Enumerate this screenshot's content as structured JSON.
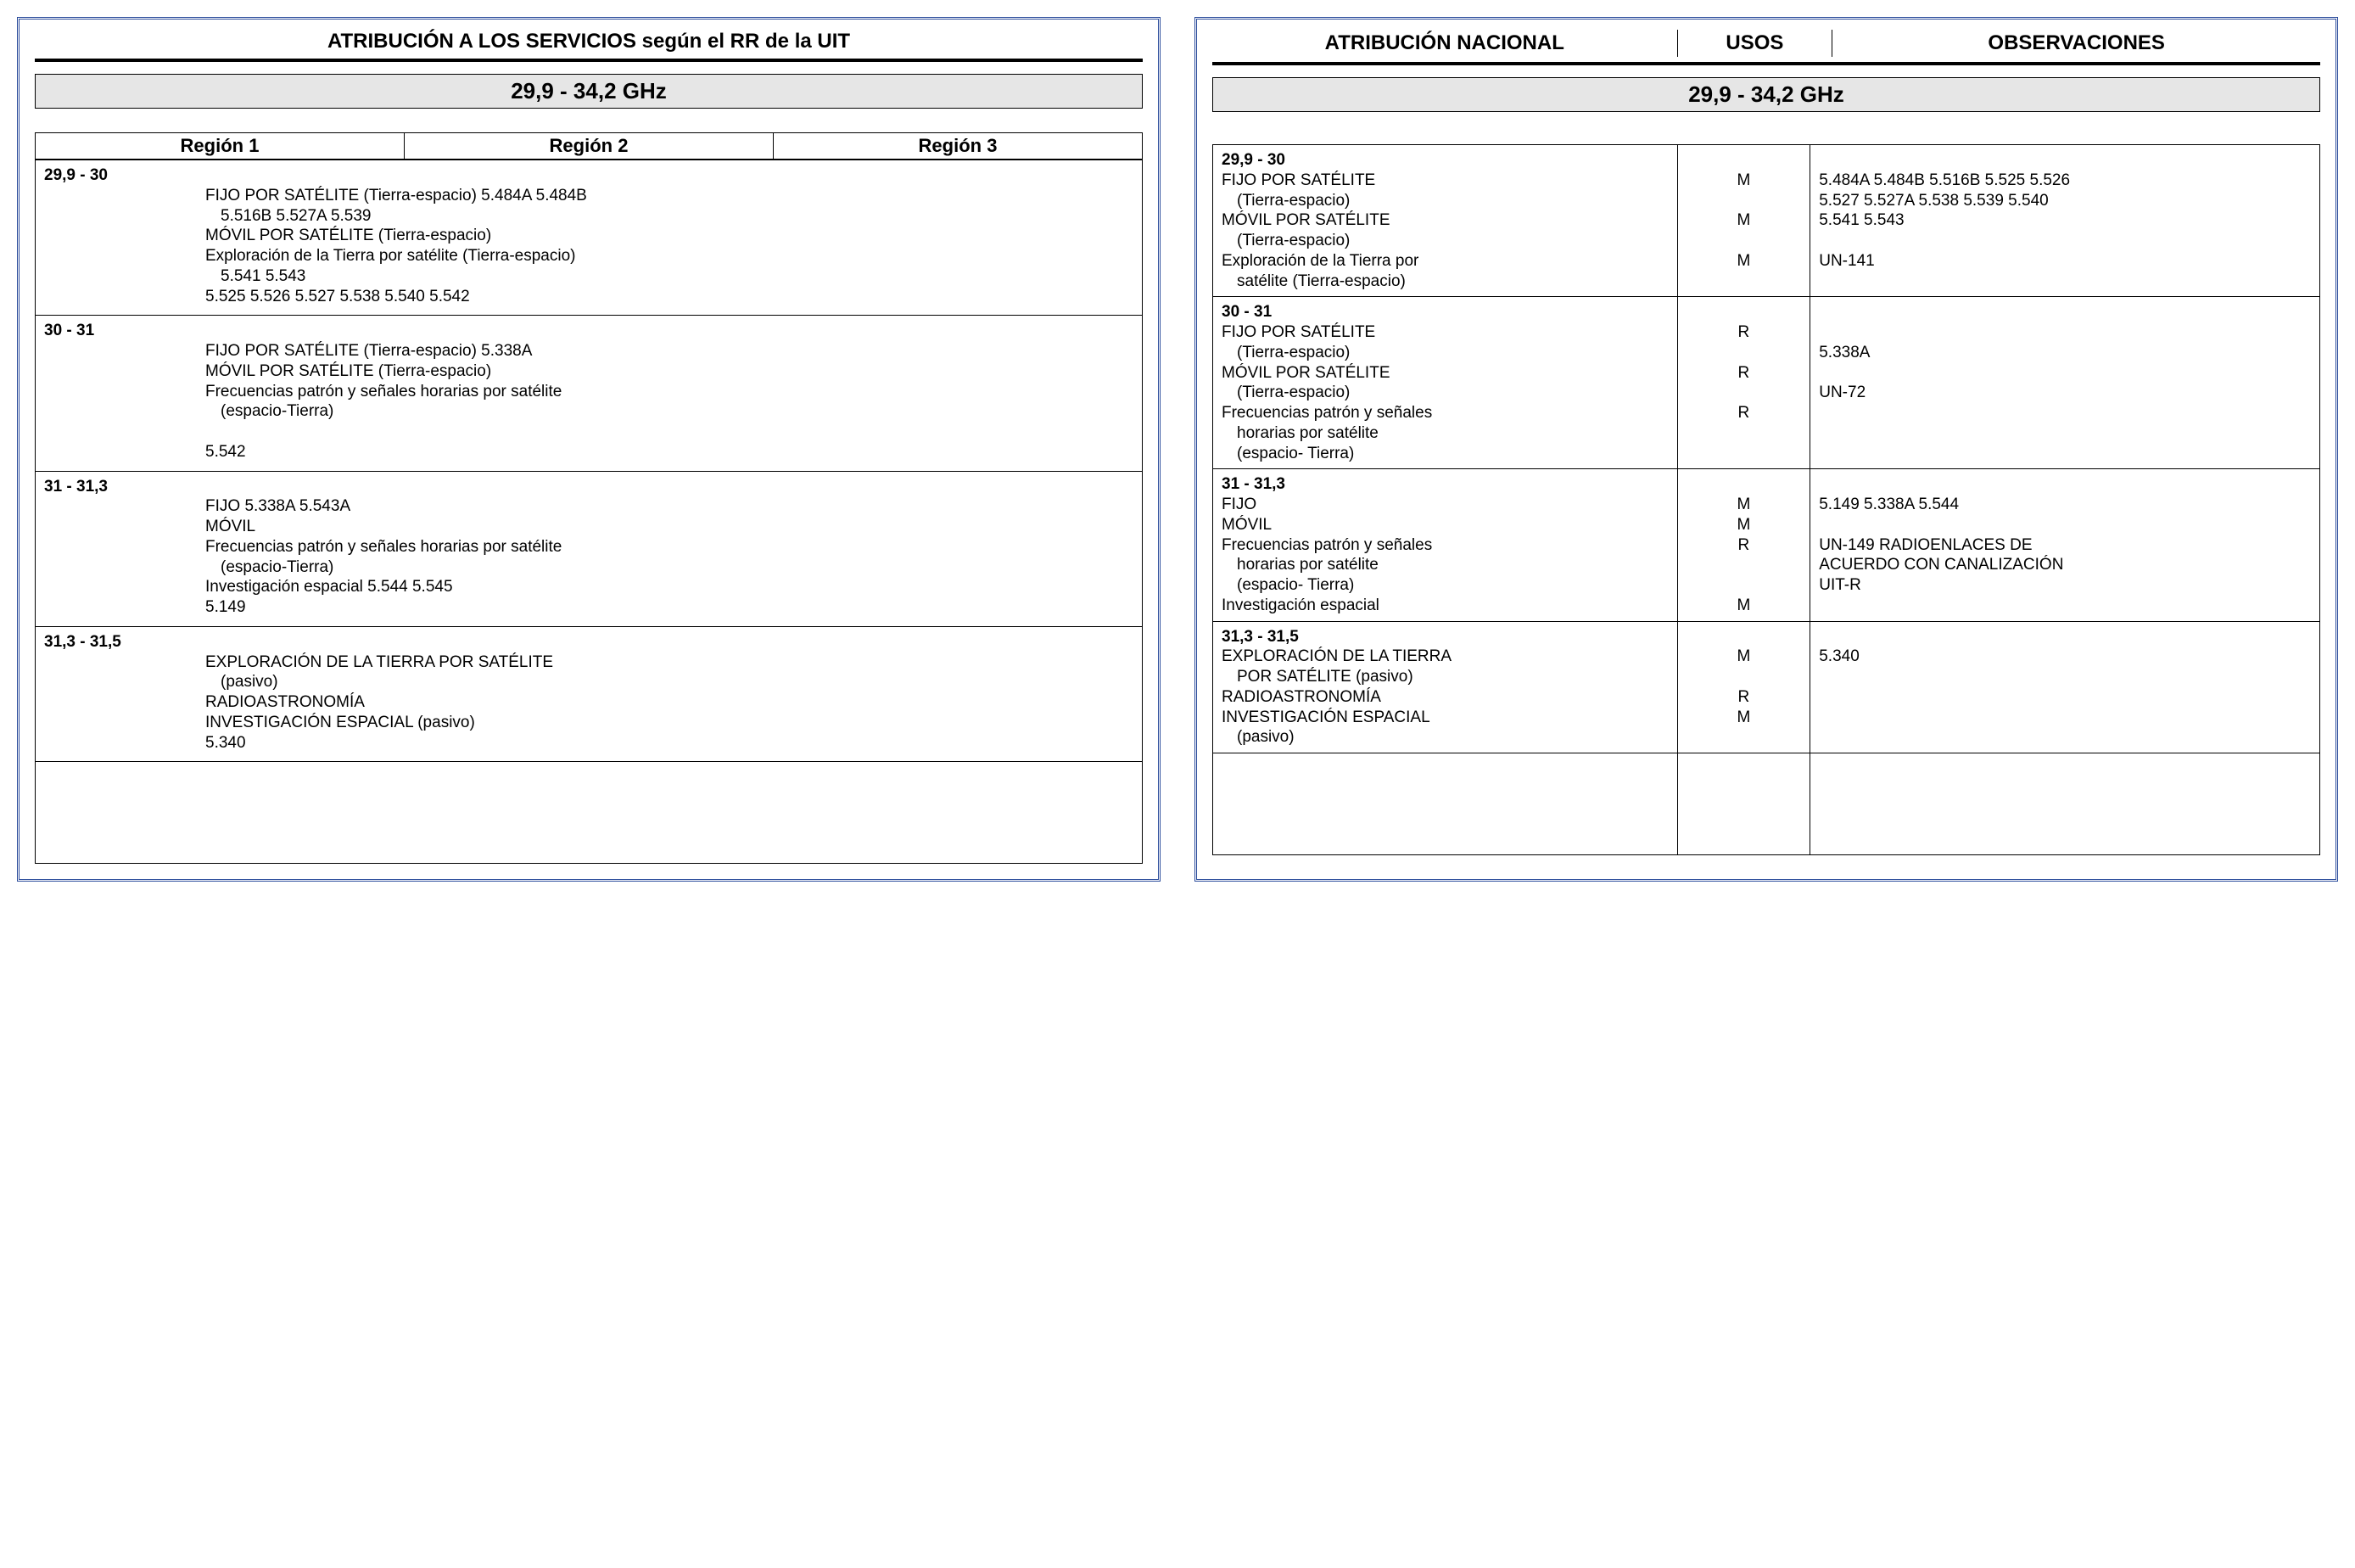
{
  "left": {
    "header": "ATRIBUCIÓN A LOS SERVICIOS según el RR de la UIT",
    "band": "29,9 - 34,2 GHz",
    "regions": [
      "Región 1",
      "Región 2",
      "Región 3"
    ],
    "rows": [
      {
        "freq": "29,9 - 30",
        "services": [
          "FIJO POR SATÉLITE (Tierra-espacio) 5.484A 5.484B",
          "  5.516B  5.527A 5.539",
          "MÓVIL POR SATÉLITE (Tierra-espacio)",
          "Exploración de la Tierra por satélite (Tierra-espacio)",
          "  5.541 5.543",
          "5.525 5.526 5.527 5.538 5.540 5.542"
        ]
      },
      {
        "freq": "30 - 31",
        "services": [
          "FIJO POR SATÉLITE (Tierra-espacio) 5.338A",
          "MÓVIL POR SATÉLITE (Tierra-espacio)",
          "Frecuencias patrón y señales horarias por satélite",
          "  (espacio-Tierra)",
          "",
          "5.542"
        ]
      },
      {
        "freq": "31 - 31,3",
        "services": [
          "FIJO 5.338A 5.543A",
          "MÓVIL",
          "Frecuencias patrón y señales horarias por satélite",
          "  (espacio-Tierra)",
          "Investigación espacial 5.544 5.545",
          "5.149"
        ]
      },
      {
        "freq": "31,3 - 31,5",
        "services": [
          "EXPLORACIÓN DE LA TIERRA POR SATÉLITE",
          "  (pasivo)",
          "RADIOASTRONOMÍA",
          "INVESTIGACIÓN ESPACIAL (pasivo)",
          "5.340"
        ]
      }
    ]
  },
  "right": {
    "headers": {
      "c1": "ATRIBUCIÓN NACIONAL",
      "c2": "USOS",
      "c3": "OBSERVACIONES"
    },
    "band": "29,9 - 34,2 GHz",
    "rows": [
      {
        "freq": "29,9 - 30",
        "services": [
          {
            "text": "FIJO POR SATÉLITE",
            "sub": "(Tierra-espacio)",
            "uso": "M"
          },
          {
            "text": "MÓVIL POR SATÉLITE",
            "sub": "(Tierra-espacio)",
            "uso": "M"
          },
          {
            "text": "Exploración de la Tierra por",
            "sub": "satélite (Tierra-espacio)",
            "uso": "M"
          }
        ],
        "obs": [
          "5.484A  5.484B 5.516B  5.525 5.526",
          "5.527  5.527A 5.538  5.539  5.540",
          "5.541 5.543",
          "",
          "UN-141"
        ]
      },
      {
        "freq": "30 - 31",
        "services": [
          {
            "text": "FIJO POR SATÉLITE",
            "sub": "(Tierra-espacio)",
            "uso": "R"
          },
          {
            "text": "MÓVIL POR SATÉLITE",
            "sub": "(Tierra-espacio)",
            "uso": "R"
          },
          {
            "text": "Frecuencias patrón y señales",
            "sub": "horarias por satélite",
            "sub2": "(espacio- Tierra)",
            "uso": "R"
          }
        ],
        "obs": [
          "",
          "5.338A",
          "",
          "UN-72"
        ]
      },
      {
        "freq": "31 - 31,3",
        "services": [
          {
            "text": "FIJO",
            "uso": "M"
          },
          {
            "text": "MÓVIL",
            "uso": "M"
          },
          {
            "text": "Frecuencias patrón y señales",
            "sub": "horarias por satélite",
            "sub2": "(espacio- Tierra)",
            "uso": "R"
          },
          {
            "text": "Investigación espacial",
            "uso": "M"
          }
        ],
        "obs": [
          "5.149 5.338A 5.544",
          "",
          "UN-149 RADIOENLACES DE",
          "ACUERDO CON CANALIZACIÓN",
          "UIT-R"
        ]
      },
      {
        "freq": "31,3 - 31,5",
        "services": [
          {
            "text": "EXPLORACIÓN DE LA TIERRA",
            "sub": "POR SATÉLITE (pasivo)",
            "uso": "M"
          },
          {
            "text": "RADIOASTRONOMÍA",
            "uso": "R"
          },
          {
            "text": "INVESTIGACIÓN ESPACIAL",
            "sub": "(pasivo)",
            "uso": "M"
          }
        ],
        "obs": [
          "5.340"
        ]
      }
    ]
  }
}
